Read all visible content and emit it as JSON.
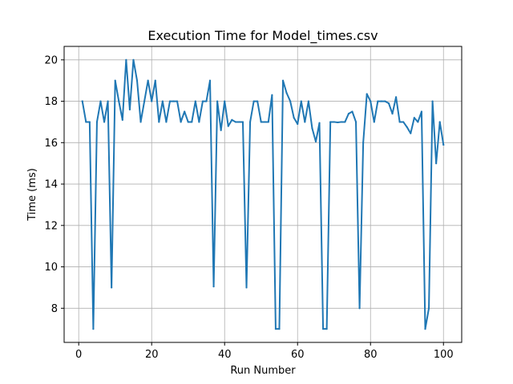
{
  "chart_data": {
    "type": "line",
    "title": "Execution Time for Model_times.csv",
    "xlabel": "Run Number",
    "ylabel": "Time (ms)",
    "xlim": [
      -4,
      105
    ],
    "ylim": [
      6.35,
      20.65
    ],
    "xticks": [
      0,
      20,
      40,
      60,
      80,
      100
    ],
    "yticks": [
      8,
      10,
      12,
      14,
      16,
      18,
      20
    ],
    "grid": true,
    "line_color": "#1f77b4",
    "series": [
      {
        "x": [
          1,
          2,
          3,
          4,
          5,
          6,
          7,
          8,
          9,
          10,
          11,
          12,
          13,
          14,
          15,
          16,
          17,
          18,
          19,
          20,
          21,
          22,
          23,
          24,
          25,
          26,
          27,
          28,
          29,
          30,
          31,
          32,
          33,
          34,
          35,
          36,
          37,
          38,
          39,
          40,
          41,
          42,
          43,
          44,
          45,
          46,
          47,
          48,
          49,
          50,
          51,
          52,
          53,
          54,
          55,
          56,
          57,
          58,
          59,
          60,
          61,
          62,
          63,
          64,
          65,
          66,
          67,
          68,
          69,
          70,
          71,
          72,
          73,
          74,
          75,
          76,
          77,
          78,
          79,
          80,
          81,
          82,
          83,
          84,
          85,
          86,
          87,
          88,
          89,
          90,
          91,
          92,
          93,
          94,
          95,
          96,
          97,
          98,
          99,
          100
        ],
        "y": [
          18,
          17,
          17,
          7,
          17,
          18,
          17,
          18,
          9,
          19,
          18,
          17.1,
          20,
          17.6,
          20,
          19,
          17,
          18,
          19,
          18,
          19,
          17,
          18,
          17,
          18,
          18,
          18,
          17,
          17.5,
          17,
          17,
          18,
          17,
          18,
          18,
          19,
          9.05,
          18,
          16.6,
          18,
          16.8,
          17.1,
          17,
          17,
          17,
          9,
          17,
          18,
          18,
          17,
          17,
          17,
          18.3,
          7,
          7,
          19,
          18.4,
          18,
          17.2,
          16.9,
          18,
          17,
          18,
          16.7,
          16.05,
          16.95,
          7,
          7,
          17,
          17,
          16.98,
          17,
          17,
          17.4,
          17.5,
          17,
          8,
          16,
          18.35,
          18,
          17,
          18,
          18,
          18,
          17.9,
          17.4,
          18.2,
          17,
          17,
          16.75,
          16.45,
          17.2,
          17,
          17.5,
          7,
          8,
          18,
          15,
          17,
          15.9
        ]
      }
    ]
  }
}
